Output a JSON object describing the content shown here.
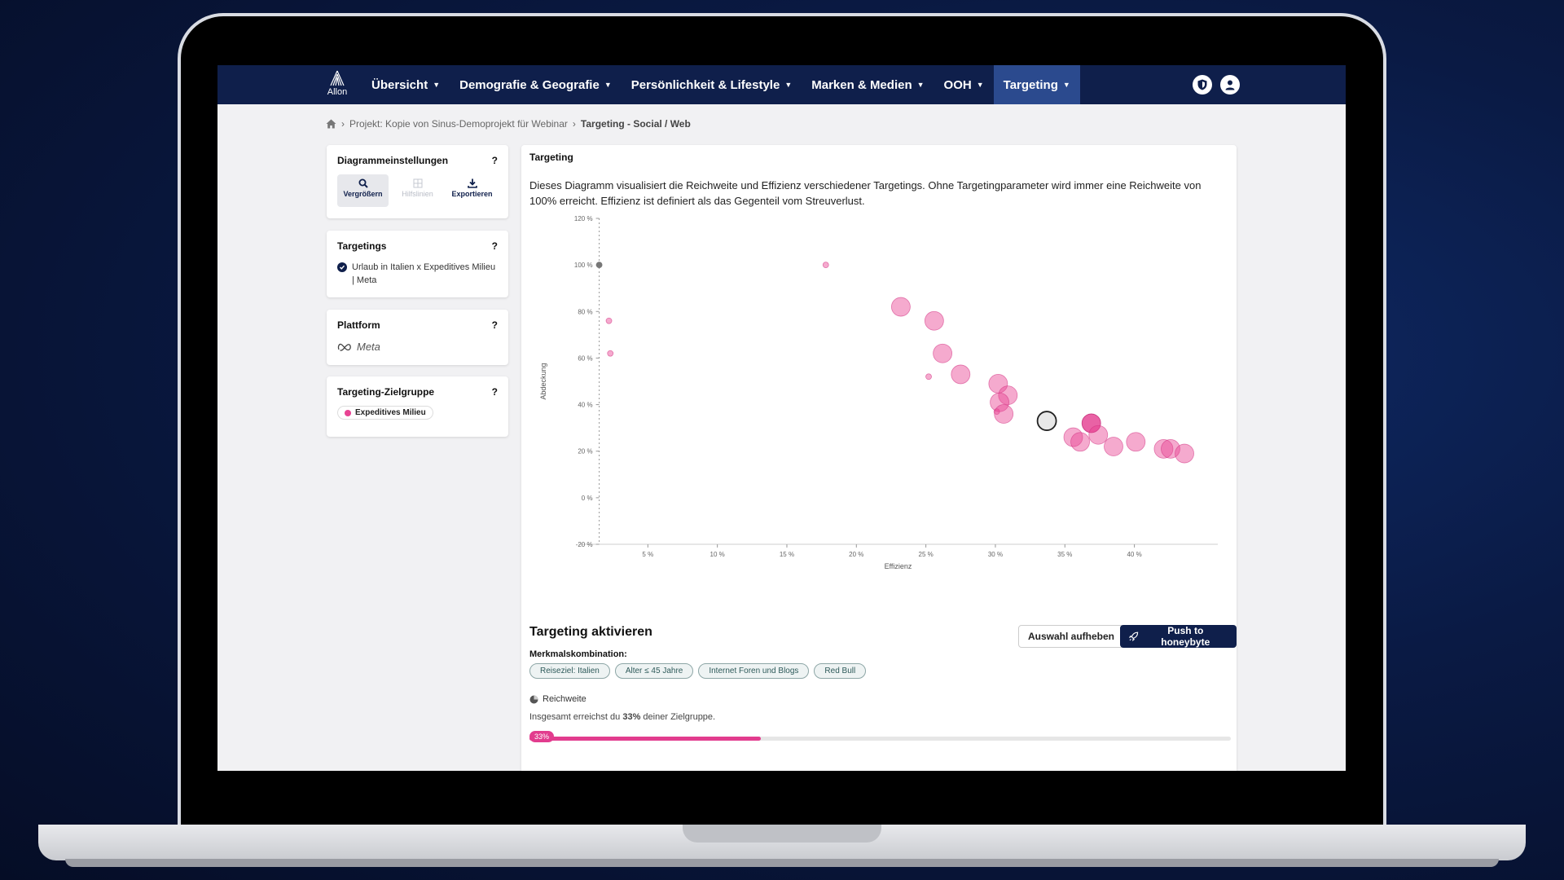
{
  "nav": {
    "logo_text": "Allon",
    "items": [
      {
        "label": "Übersicht"
      },
      {
        "label": "Demografie & Geografie"
      },
      {
        "label": "Persönlichkeit & Lifestyle"
      },
      {
        "label": "Marken & Medien"
      },
      {
        "label": "OOH"
      },
      {
        "label": "Targeting"
      }
    ],
    "active_index": 5
  },
  "breadcrumb": {
    "project": "Projekt: Kopie von Sinus-Demoprojekt für Webinar",
    "current": "Targeting - Social / Web"
  },
  "sidebar": {
    "chart_settings": {
      "title": "Diagrammeinstellungen",
      "help": "?",
      "tools": [
        {
          "label": "Vergrößern",
          "icon": "magnifier-icon"
        },
        {
          "label": "Hilfslinien",
          "icon": "grid-icon"
        },
        {
          "label": "Exportieren",
          "icon": "download-icon"
        }
      ]
    },
    "targetings": {
      "title": "Targetings",
      "help": "?",
      "item": "Urlaub in Italien x Expeditives Milieu | Meta"
    },
    "platform": {
      "title": "Plattform",
      "help": "?",
      "value": "Meta"
    },
    "audience": {
      "title": "Targeting-Zielgruppe",
      "help": "?",
      "chip": "Expeditives Milieu"
    }
  },
  "main": {
    "title": "Targeting",
    "description": "Dieses Diagramm visualisiert die Reichweite und Effizienz verschiedener Targetings. Ohne Targetingparameter wird immer eine Reichweite von 100% erreicht. Effizienz ist definiert als das Gegenteil vom Streuverlust.",
    "activate": {
      "title": "Targeting aktivieren",
      "clear_button": "Auswahl aufheben",
      "push_button": "Push to honeybyte",
      "combo_label": "Merkmalskombination:",
      "chips": [
        "Reiseziel: Italien",
        "Alter ≤ 45 Jahre",
        "Internet Foren und Blogs",
        "Red Bull"
      ],
      "reach_label": "Reichweite",
      "reach_text_prefix": "Insgesamt erreichst du ",
      "reach_value": "33%",
      "reach_text_suffix": " deiner Zielgruppe.",
      "progress": 0.33,
      "progress_badge": "33%"
    }
  },
  "colors": {
    "nav_bg": "#0f1f4b",
    "accent_pink": "#e84393",
    "selected_gray": "#e8e8e8"
  },
  "chart_data": {
    "type": "scatter",
    "xlabel": "Effizienz",
    "ylabel": "Abdeckung",
    "xlim": [
      0,
      46
    ],
    "ylim": [
      -20,
      120
    ],
    "xticks": [
      {
        "v": 5,
        "label": "5 %"
      },
      {
        "v": 10,
        "label": "10 %"
      },
      {
        "v": 15,
        "label": "15 %"
      },
      {
        "v": 20,
        "label": "20 %"
      },
      {
        "v": 25,
        "label": "25 %"
      },
      {
        "v": 30,
        "label": "30 %"
      },
      {
        "v": 35,
        "label": "35 %"
      },
      {
        "v": 40,
        "label": "40 %"
      }
    ],
    "yticks": [
      {
        "v": 120,
        "label": "120 %"
      },
      {
        "v": 100,
        "label": "100 %"
      },
      {
        "v": 80,
        "label": "80 %"
      },
      {
        "v": 60,
        "label": "60 %"
      },
      {
        "v": 40,
        "label": "40 %"
      },
      {
        "v": 20,
        "label": "20 %"
      },
      {
        "v": 0,
        "label": "0 %"
      },
      {
        "v": -20,
        "label": "-20 %"
      }
    ],
    "reference_x": 1.5,
    "points": [
      {
        "x": 1.5,
        "y": 100,
        "size": 1,
        "kind": "base"
      },
      {
        "x": 17.8,
        "y": 100,
        "size": 1,
        "kind": "normal"
      },
      {
        "x": 2.2,
        "y": 76,
        "size": 1,
        "kind": "normal"
      },
      {
        "x": 2.3,
        "y": 62,
        "size": 1,
        "kind": "normal"
      },
      {
        "x": 25.2,
        "y": 52,
        "size": 1,
        "kind": "normal"
      },
      {
        "x": 30.1,
        "y": 37,
        "size": 1,
        "kind": "normal"
      },
      {
        "x": 23.2,
        "y": 82,
        "size": 3,
        "kind": "normal"
      },
      {
        "x": 25.6,
        "y": 76,
        "size": 3,
        "kind": "normal"
      },
      {
        "x": 26.2,
        "y": 62,
        "size": 3,
        "kind": "normal"
      },
      {
        "x": 27.5,
        "y": 53,
        "size": 3,
        "kind": "normal"
      },
      {
        "x": 30.2,
        "y": 49,
        "size": 3,
        "kind": "normal"
      },
      {
        "x": 30.9,
        "y": 44,
        "size": 3,
        "kind": "normal"
      },
      {
        "x": 30.3,
        "y": 41,
        "size": 3,
        "kind": "normal"
      },
      {
        "x": 30.6,
        "y": 36,
        "size": 3,
        "kind": "normal"
      },
      {
        "x": 33.7,
        "y": 33,
        "size": 3,
        "kind": "selected"
      },
      {
        "x": 35.6,
        "y": 26,
        "size": 3,
        "kind": "normal"
      },
      {
        "x": 36.1,
        "y": 24,
        "size": 3,
        "kind": "normal"
      },
      {
        "x": 36.9,
        "y": 32,
        "size": 3,
        "kind": "dark"
      },
      {
        "x": 37.4,
        "y": 27,
        "size": 3,
        "kind": "normal"
      },
      {
        "x": 38.5,
        "y": 22,
        "size": 3,
        "kind": "normal"
      },
      {
        "x": 40.1,
        "y": 24,
        "size": 3,
        "kind": "normal"
      },
      {
        "x": 42.1,
        "y": 21,
        "size": 3,
        "kind": "normal"
      },
      {
        "x": 42.6,
        "y": 21,
        "size": 3,
        "kind": "normal"
      },
      {
        "x": 43.6,
        "y": 19,
        "size": 3,
        "kind": "normal"
      }
    ]
  }
}
